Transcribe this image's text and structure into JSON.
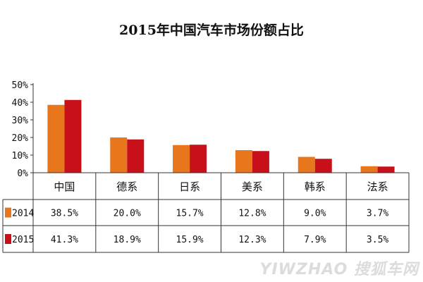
{
  "chart_data": {
    "type": "bar",
    "title": "2015年中国汽车市场份额占比",
    "categories": [
      "中国",
      "德系",
      "日系",
      "美系",
      "韩系",
      "法系"
    ],
    "series": [
      {
        "name": "2014",
        "values": [
          38.5,
          20.0,
          15.7,
          12.8,
          9.0,
          3.7
        ],
        "labels": [
          "38.5%",
          "20.0%",
          "15.7%",
          "12.8%",
          "9.0%",
          "3.7%"
        ],
        "color": "#e8761c"
      },
      {
        "name": "2015",
        "values": [
          41.3,
          18.9,
          15.9,
          12.3,
          7.9,
          3.5
        ],
        "labels": [
          "41.3%",
          "18.9%",
          "15.9%",
          "12.3%",
          "7.9%",
          "3.5%"
        ],
        "color": "#c8101a"
      }
    ],
    "yticks": [
      "0%",
      "10%",
      "20%",
      "30%",
      "40%",
      "50%"
    ],
    "ylim": [
      0,
      50
    ],
    "data_table": true,
    "legend": "in-table"
  },
  "watermark": "YIWZHAO 搜狐车网"
}
